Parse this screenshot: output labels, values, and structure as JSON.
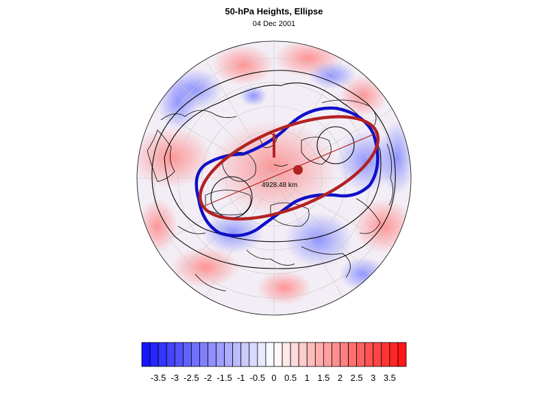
{
  "title": "50-hPa Heights, Ellipse",
  "subtitle": "04 Dec 2001",
  "distance_label": "4928.48 km",
  "colorbar": {
    "ticks": [
      "-3.5",
      "-3",
      "-2.5",
      "-2",
      "-1.5",
      "-1",
      "-0.5",
      "0",
      "0.5",
      "1",
      "1.5",
      "2",
      "2.5",
      "3",
      "3.5"
    ],
    "levels": [
      -4.0,
      -3.75,
      -3.5,
      -3.25,
      -3.0,
      -2.75,
      -2.5,
      -2.25,
      -2.0,
      -1.75,
      -1.5,
      -1.25,
      -1.0,
      -0.75,
      -0.5,
      -0.25,
      0.0,
      0.25,
      0.5,
      0.75,
      1.0,
      1.25,
      1.5,
      1.75,
      2.0,
      2.25,
      2.5,
      2.75,
      3.0,
      3.25,
      3.5,
      3.75,
      4.0
    ],
    "negative_color": "#1010ff",
    "positive_color": "#ff1010",
    "neutral_color": "#ffffff"
  },
  "colors": {
    "contour": "#1010c8",
    "ellipse": "#b22222",
    "coastline": "#000000",
    "gridline": "#c8c8c8"
  }
}
